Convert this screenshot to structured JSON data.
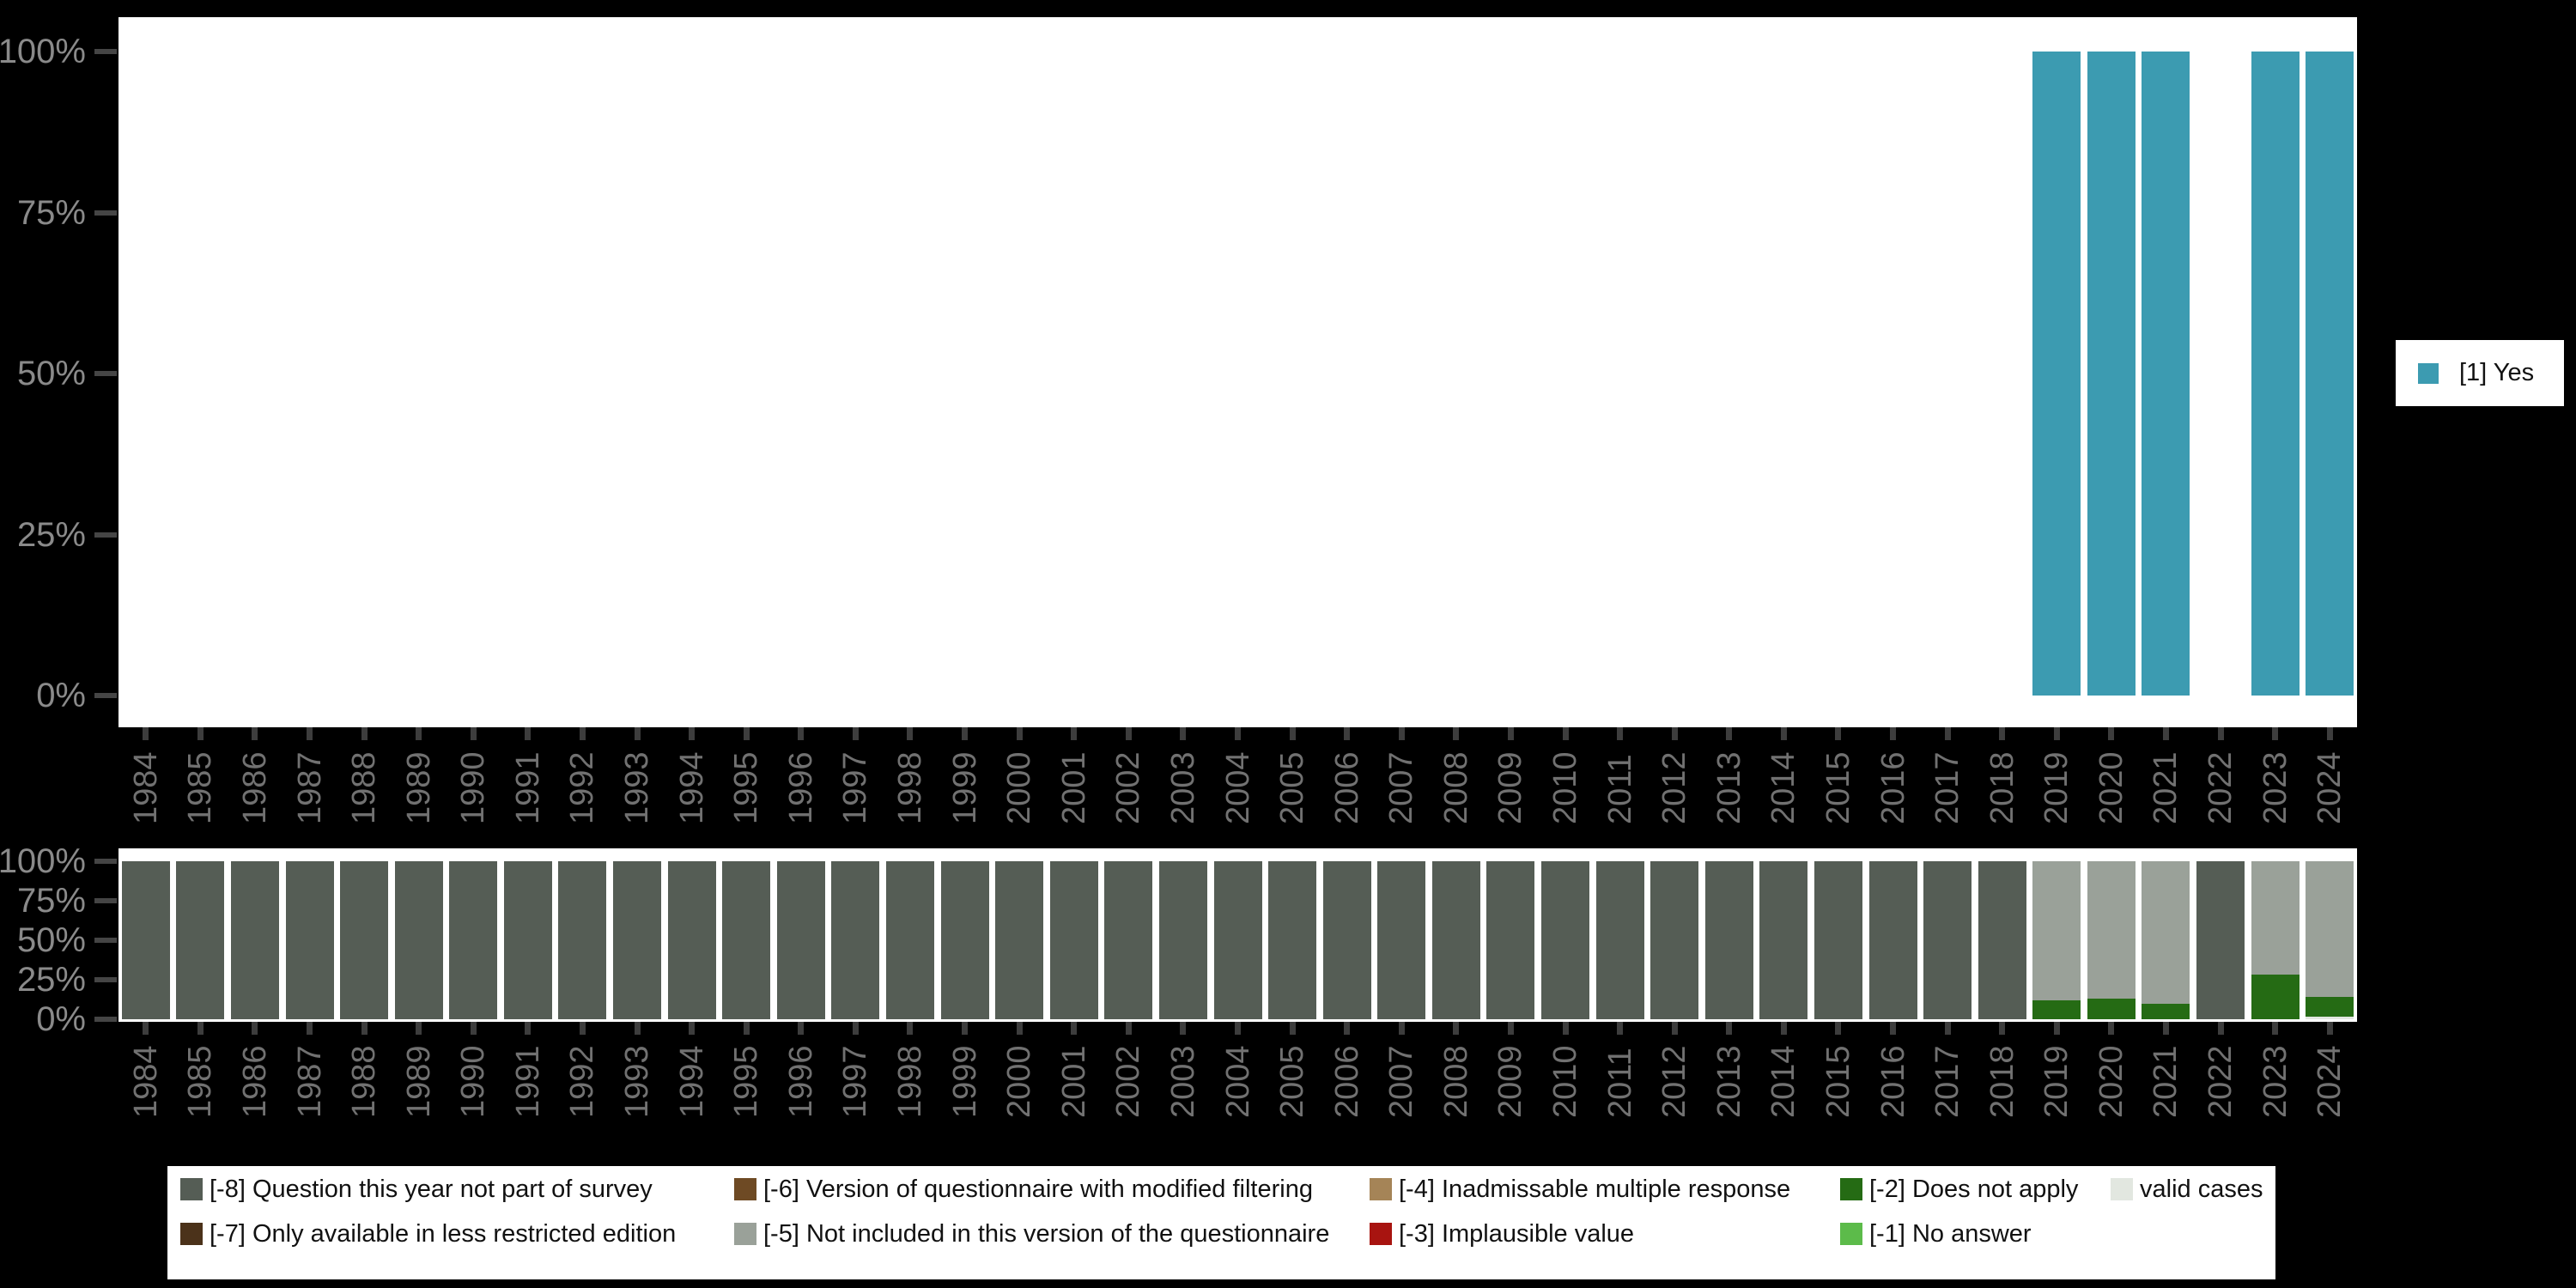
{
  "background_color": "#000000",
  "axes": {
    "y_tick_labels": [
      "100%",
      "75%",
      "50%",
      "25%",
      "0%"
    ],
    "years": [
      "1984",
      "1985",
      "1986",
      "1987",
      "1988",
      "1989",
      "1990",
      "1991",
      "1992",
      "1993",
      "1994",
      "1995",
      "1996",
      "1997",
      "1998",
      "1999",
      "2000",
      "2001",
      "2002",
      "2003",
      "2004",
      "2005",
      "2006",
      "2007",
      "2008",
      "2009",
      "2010",
      "2011",
      "2012",
      "2013",
      "2014",
      "2015",
      "2016",
      "2017",
      "2018",
      "2019",
      "2020",
      "2021",
      "2022",
      "2023",
      "2024"
    ]
  },
  "colors": {
    "[1] Yes": "#3c9bb1",
    "[-8]": "#555d55",
    "[-7]": "#4b321a",
    "[-6]": "#6e4a24",
    "[-5]": "#9aa199",
    "[-4]": "#a58457",
    "[-3]": "#a81410",
    "[-2]": "#256b14",
    "[-1]": "#5cbb4a",
    "valid cases": "#e2e7e0"
  },
  "legend_top": {
    "items": [
      {
        "label": "[1] Yes",
        "key": "[1] Yes"
      }
    ]
  },
  "legend_bottom": {
    "items": [
      {
        "label": "[-8] Question this year not part of survey",
        "key": "[-8]",
        "col": 0,
        "row": 0
      },
      {
        "label": "[-7] Only available in less restricted edition",
        "key": "[-7]",
        "col": 0,
        "row": 1
      },
      {
        "label": "[-6] Version of questionnaire with modified filtering",
        "key": "[-6]",
        "col": 1,
        "row": 0
      },
      {
        "label": "[-5] Not included in this version of the questionnaire",
        "key": "[-5]",
        "col": 1,
        "row": 1
      },
      {
        "label": "[-4] Inadmissable multiple response",
        "key": "[-4]",
        "col": 2,
        "row": 0
      },
      {
        "label": "[-3] Implausible value",
        "key": "[-3]",
        "col": 2,
        "row": 1
      },
      {
        "label": "[-2] Does not apply",
        "key": "[-2]",
        "col": 3,
        "row": 0
      },
      {
        "label": "[-1] No answer",
        "key": "[-1]",
        "col": 3,
        "row": 1
      },
      {
        "label": "valid cases",
        "key": "valid cases",
        "col": 4,
        "row": 0
      }
    ]
  },
  "chart_data": [
    {
      "type": "bar",
      "panel": "top",
      "title": "",
      "xlabel": "",
      "ylabel": "",
      "ylim": [
        0,
        100
      ],
      "grid": false,
      "legend_position": "right",
      "categories": [
        "1984",
        "1985",
        "1986",
        "1987",
        "1988",
        "1989",
        "1990",
        "1991",
        "1992",
        "1993",
        "1994",
        "1995",
        "1996",
        "1997",
        "1998",
        "1999",
        "2000",
        "2001",
        "2002",
        "2003",
        "2004",
        "2005",
        "2006",
        "2007",
        "2008",
        "2009",
        "2010",
        "2011",
        "2012",
        "2013",
        "2014",
        "2015",
        "2016",
        "2017",
        "2018",
        "2019",
        "2020",
        "2021",
        "2022",
        "2023",
        "2024"
      ],
      "stack_order": [
        "[1] Yes"
      ],
      "series": [
        {
          "name": "[1] Yes",
          "values": [
            null,
            null,
            null,
            null,
            null,
            null,
            null,
            null,
            null,
            null,
            null,
            null,
            null,
            null,
            null,
            null,
            null,
            null,
            null,
            null,
            null,
            null,
            null,
            null,
            null,
            null,
            null,
            null,
            null,
            null,
            null,
            null,
            null,
            null,
            null,
            100,
            100,
            100,
            null,
            100,
            100
          ]
        }
      ]
    },
    {
      "type": "bar",
      "panel": "bottom",
      "title": "",
      "xlabel": "",
      "ylabel": "",
      "ylim": [
        0,
        100
      ],
      "grid": false,
      "legend_position": "bottom",
      "categories": [
        "1984",
        "1985",
        "1986",
        "1987",
        "1988",
        "1989",
        "1990",
        "1991",
        "1992",
        "1993",
        "1994",
        "1995",
        "1996",
        "1997",
        "1998",
        "1999",
        "2000",
        "2001",
        "2002",
        "2003",
        "2004",
        "2005",
        "2006",
        "2007",
        "2008",
        "2009",
        "2010",
        "2011",
        "2012",
        "2013",
        "2014",
        "2015",
        "2016",
        "2017",
        "2018",
        "2019",
        "2020",
        "2021",
        "2022",
        "2023",
        "2024"
      ],
      "stack_order": [
        "valid cases",
        "[-1]",
        "[-2]",
        "[-3]",
        "[-4]",
        "[-5]",
        "[-6]",
        "[-7]",
        "[-8]"
      ],
      "series": [
        {
          "name": "[-8]",
          "values": [
            100,
            100,
            100,
            100,
            100,
            100,
            100,
            100,
            100,
            100,
            100,
            100,
            100,
            100,
            100,
            100,
            100,
            100,
            100,
            100,
            100,
            100,
            100,
            100,
            100,
            100,
            100,
            100,
            100,
            100,
            100,
            100,
            100,
            100,
            100,
            0,
            0,
            0,
            100,
            0,
            0
          ]
        },
        {
          "name": "[-5]",
          "values": [
            0,
            0,
            0,
            0,
            0,
            0,
            0,
            0,
            0,
            0,
            0,
            0,
            0,
            0,
            0,
            0,
            0,
            0,
            0,
            0,
            0,
            0,
            0,
            0,
            0,
            0,
            0,
            0,
            0,
            0,
            0,
            0,
            0,
            0,
            0,
            88,
            87,
            90,
            0,
            72,
            86
          ]
        },
        {
          "name": "[-2]",
          "values": [
            0,
            0,
            0,
            0,
            0,
            0,
            0,
            0,
            0,
            0,
            0,
            0,
            0,
            0,
            0,
            0,
            0,
            0,
            0,
            0,
            0,
            0,
            0,
            0,
            0,
            0,
            0,
            0,
            0,
            0,
            0,
            0,
            0,
            0,
            0,
            12,
            13,
            10,
            0,
            28,
            12.5
          ]
        },
        {
          "name": "valid cases",
          "values": [
            0,
            0,
            0,
            0,
            0,
            0,
            0,
            0,
            0,
            0,
            0,
            0,
            0,
            0,
            0,
            0,
            0,
            0,
            0,
            0,
            0,
            0,
            0,
            0,
            0,
            0,
            0,
            0,
            0,
            0,
            0,
            0,
            0,
            0,
            0,
            0,
            0,
            0,
            0,
            0,
            1.5
          ]
        }
      ]
    }
  ]
}
